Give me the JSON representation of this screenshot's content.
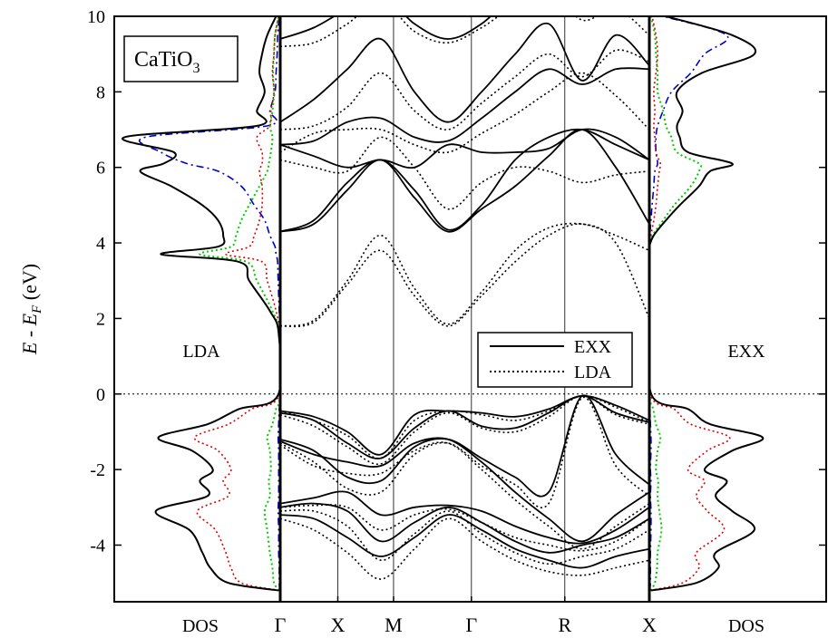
{
  "chart_data": {
    "type": "line",
    "title": "",
    "ylabel_prefix": "E - E",
    "ylabel_sub": "F",
    "ylabel_suffix": " (eV)",
    "ylim": [
      -5.5,
      10
    ],
    "yticks": [
      10,
      8,
      6,
      4,
      2,
      0,
      -2,
      -4
    ],
    "fermi_level": 0,
    "grid": false,
    "material_box": {
      "base": "CaTiO",
      "sub": "3"
    },
    "panels": {
      "left_dos": {
        "text_label": "LDA",
        "bottom_label": "DOS"
      },
      "right_dos": {
        "text_label": "EXX",
        "bottom_label": "DOS"
      }
    },
    "kpath_labels": [
      "Γ",
      "X",
      "M",
      "Γ",
      "R",
      "X"
    ],
    "kpath_x": [
      0,
      0.156,
      0.307,
      0.518,
      0.771,
      1.0
    ],
    "legend": {
      "position": "center-right",
      "entries": [
        "EXX",
        "LDA"
      ]
    },
    "colors": {
      "total": "#000000",
      "o_p": "#dd0000",
      "ti_d": "#00cc00",
      "ca_d": "#0000cc"
    },
    "band_series": [
      {
        "name": "EXX",
        "style": "solid",
        "bands": [
          [
            -0.45,
            -0.6,
            -1.0,
            -1.6,
            -0.55,
            -0.45,
            -0.5,
            -0.6,
            -0.4,
            -0.05,
            -0.3,
            -0.7
          ],
          [
            -0.5,
            -0.7,
            -1.3,
            -1.7,
            -0.9,
            -0.45,
            -0.85,
            -0.9,
            -0.5,
            -0.05,
            -0.5,
            -0.75
          ],
          [
            -1.2,
            -1.5,
            -2.2,
            -2.3,
            -1.4,
            -1.2,
            -1.7,
            -2.2,
            -2.6,
            -0.05,
            -1.6,
            -2.4
          ],
          [
            -1.25,
            -1.6,
            -1.8,
            -1.9,
            -1.3,
            -1.2,
            -1.8,
            -2.6,
            -3.3,
            -3.9,
            -3.2,
            -2.6
          ],
          [
            -2.9,
            -2.75,
            -2.6,
            -3.2,
            -3.0,
            -2.95,
            -3.1,
            -3.5,
            -3.8,
            -3.95,
            -3.6,
            -3.0
          ],
          [
            -3.0,
            -2.9,
            -3.1,
            -3.9,
            -3.4,
            -3.0,
            -3.4,
            -3.9,
            -4.2,
            -4.0,
            -3.8,
            -3.3
          ],
          [
            -3.2,
            -3.3,
            -3.8,
            -4.3,
            -3.8,
            -3.2,
            -3.6,
            -4.1,
            -4.4,
            -4.6,
            -4.3,
            -4.1
          ],
          [
            4.3,
            4.5,
            5.4,
            6.2,
            5.2,
            4.3,
            4.9,
            5.5,
            6.3,
            7.0,
            6.0,
            4.5
          ],
          [
            4.3,
            4.6,
            5.6,
            6.2,
            5.4,
            4.35,
            5.0,
            6.2,
            6.8,
            7.0,
            6.6,
            6.2
          ],
          [
            6.6,
            6.3,
            6.0,
            6.2,
            6.0,
            6.6,
            6.4,
            6.4,
            6.5,
            7.0,
            6.8,
            6.2
          ],
          [
            6.6,
            6.7,
            7.2,
            7.3,
            6.8,
            6.7,
            7.3,
            8.0,
            8.6,
            8.2,
            8.6,
            8.6
          ],
          [
            7.2,
            7.8,
            8.6,
            9.4,
            8.0,
            7.2,
            8.0,
            9.0,
            9.8,
            8.3,
            9.5,
            8.7
          ],
          [
            9.4,
            9.7,
            10.2,
            10.6,
            9.8,
            9.4,
            9.8,
            10.6,
            11.0,
            10.3,
            10.5,
            10.0
          ]
        ]
      },
      {
        "name": "LDA",
        "style": "dotted",
        "bands": [
          [
            -0.45,
            -0.7,
            -1.1,
            -1.7,
            -0.7,
            -0.45,
            -0.55,
            -0.7,
            -0.45,
            -0.05,
            -0.35,
            -0.75
          ],
          [
            -0.55,
            -0.85,
            -1.4,
            -1.85,
            -1.0,
            -0.5,
            -0.9,
            -1.0,
            -0.6,
            -0.05,
            -0.55,
            -0.8
          ],
          [
            -1.3,
            -1.8,
            -2.5,
            -2.6,
            -1.6,
            -1.3,
            -1.9,
            -2.4,
            -2.9,
            -0.1,
            -1.9,
            -2.7
          ],
          [
            -1.35,
            -1.9,
            -2.1,
            -2.1,
            -1.5,
            -1.3,
            -2.0,
            -2.8,
            -3.5,
            -4.1,
            -3.5,
            -2.9
          ],
          [
            -3.0,
            -2.95,
            -3.0,
            -3.6,
            -3.2,
            -3.05,
            -3.4,
            -3.8,
            -4.0,
            -4.15,
            -3.9,
            -3.3
          ],
          [
            -3.1,
            -3.1,
            -3.5,
            -4.4,
            -3.7,
            -3.1,
            -3.7,
            -4.2,
            -4.5,
            -4.3,
            -4.1,
            -3.6
          ],
          [
            -3.3,
            -3.6,
            -4.2,
            -4.9,
            -4.1,
            -3.3,
            -3.9,
            -4.4,
            -4.7,
            -4.8,
            -4.6,
            -4.4
          ],
          [
            1.8,
            1.9,
            2.9,
            3.8,
            2.6,
            1.8,
            2.6,
            3.5,
            4.2,
            4.5,
            4.0,
            2.0
          ],
          [
            1.8,
            1.95,
            3.0,
            4.2,
            2.8,
            1.85,
            2.7,
            3.8,
            4.4,
            4.5,
            4.2,
            3.8
          ],
          [
            6.2,
            6.0,
            5.9,
            6.8,
            6.0,
            4.9,
            5.6,
            6.0,
            5.9,
            5.6,
            5.8,
            5.9
          ],
          [
            6.4,
            6.9,
            7.0,
            7.0,
            6.6,
            6.4,
            6.9,
            7.4,
            8.0,
            8.5,
            7.9,
            7.0
          ],
          [
            7.0,
            7.1,
            7.6,
            8.5,
            7.5,
            7.0,
            7.7,
            8.4,
            9.0,
            8.4,
            9.1,
            8.8
          ],
          [
            9.2,
            9.3,
            9.8,
            10.4,
            9.6,
            9.3,
            9.7,
            10.3,
            10.7,
            9.9,
            10.2,
            9.5
          ]
        ]
      }
    ],
    "dos_energies": [
      -5.2,
      -5.0,
      -4.6,
      -4.2,
      -3.6,
      -3.1,
      -2.7,
      -2.3,
      -2.0,
      -1.5,
      -1.15,
      -0.8,
      -0.4,
      -0.05,
      1.6,
      2.2,
      3.0,
      3.5,
      3.7,
      3.9,
      4.2,
      4.6,
      5.0,
      5.5,
      5.9,
      6.1,
      6.4,
      6.8,
      7.1,
      7.5,
      8.0,
      8.5,
      9.0,
      9.5,
      10.0
    ],
    "dos_left_lda": {
      "total": [
        3,
        100,
        135,
        150,
        175,
        240,
        140,
        155,
        130,
        170,
        235,
        140,
        80,
        5,
        3,
        20,
        60,
        80,
        230,
        120,
        110,
        120,
        150,
        210,
        270,
        225,
        205,
        300,
        45,
        45,
        30,
        40,
        35,
        25,
        8
      ],
      "o_p": [
        2,
        75,
        95,
        105,
        125,
        160,
        100,
        110,
        95,
        120,
        165,
        100,
        55,
        3,
        2,
        8,
        25,
        35,
        105,
        60,
        50,
        40,
        35,
        35,
        40,
        35,
        35,
        45,
        20,
        18,
        12,
        15,
        12,
        10,
        3
      ],
      "ti_d": [
        2,
        12,
        15,
        20,
        25,
        30,
        20,
        22,
        18,
        20,
        25,
        15,
        8,
        1,
        2,
        15,
        45,
        65,
        155,
        95,
        85,
        75,
        60,
        40,
        25,
        22,
        18,
        15,
        20,
        15,
        12,
        14,
        12,
        10,
        3
      ],
      "ca_d": [
        1,
        2,
        2,
        3,
        3,
        4,
        3,
        3,
        3,
        3,
        4,
        3,
        2,
        0,
        0,
        2,
        4,
        5,
        8,
        10,
        20,
        30,
        50,
        75,
        120,
        180,
        230,
        260,
        25,
        20,
        10,
        8,
        6,
        5,
        2
      ]
    },
    "dos_right_exx": {
      "total": [
        3,
        85,
        125,
        120,
        190,
        150,
        120,
        140,
        100,
        150,
        205,
        110,
        70,
        5,
        0,
        0,
        0,
        0,
        0,
        0,
        8,
        30,
        55,
        90,
        110,
        150,
        70,
        55,
        50,
        60,
        50,
        95,
        190,
        150,
        30
      ],
      "o_p": [
        2,
        60,
        90,
        85,
        135,
        105,
        85,
        100,
        70,
        105,
        145,
        75,
        45,
        3,
        0,
        0,
        0,
        0,
        0,
        0,
        3,
        8,
        12,
        15,
        18,
        20,
        12,
        10,
        8,
        10,
        8,
        12,
        15,
        12,
        5
      ],
      "ti_d": [
        2,
        10,
        14,
        15,
        22,
        18,
        15,
        16,
        12,
        15,
        20,
        12,
        7,
        1,
        0,
        0,
        0,
        0,
        0,
        0,
        6,
        25,
        45,
        75,
        90,
        90,
        50,
        40,
        30,
        25,
        15,
        15,
        12,
        10,
        3
      ],
      "ca_d": [
        1,
        2,
        2,
        2,
        3,
        3,
        2,
        3,
        2,
        3,
        3,
        2,
        1,
        0,
        0,
        0,
        0,
        0,
        0,
        0,
        1,
        3,
        5,
        8,
        10,
        15,
        12,
        12,
        15,
        25,
        40,
        75,
        100,
        140,
        25
      ]
    }
  }
}
